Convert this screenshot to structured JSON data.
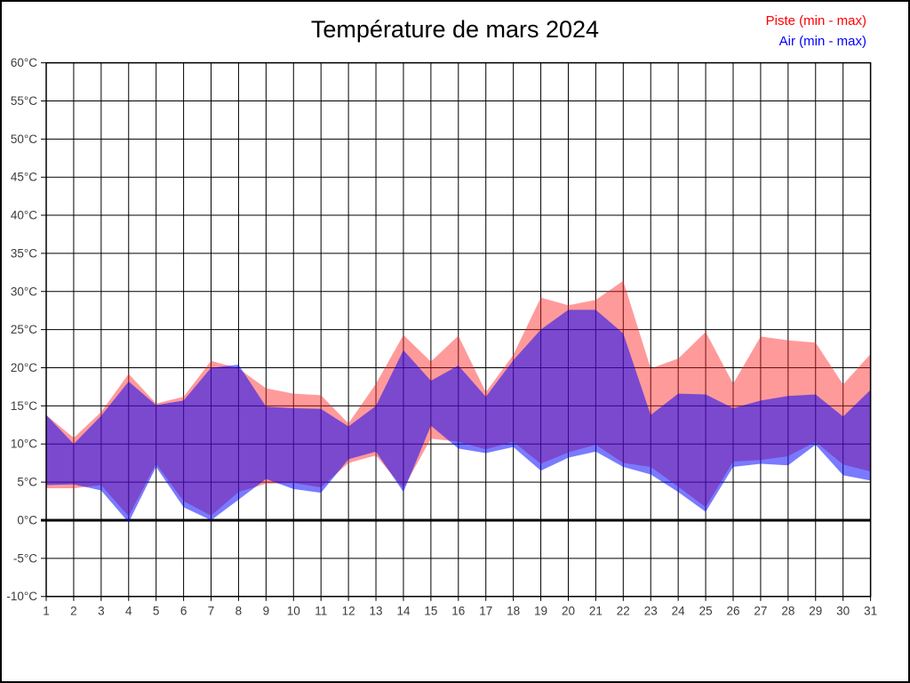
{
  "chart": {
    "title": "Température de mars 2024",
    "legend": [
      {
        "label": "Piste (min - max)",
        "color": "#ff0000"
      },
      {
        "label": "Air (min - max)",
        "color": "#0000ff"
      }
    ]
  },
  "chart_data": {
    "type": "area",
    "title": "Température de mars 2024",
    "subtitle": "",
    "xlabel": "",
    "ylabel": "",
    "x": [
      1,
      2,
      3,
      4,
      5,
      6,
      7,
      8,
      9,
      10,
      11,
      12,
      13,
      14,
      15,
      16,
      17,
      18,
      19,
      20,
      21,
      22,
      23,
      24,
      25,
      26,
      27,
      28,
      29,
      30,
      31
    ],
    "x_tick_labels": [
      "1",
      "2",
      "3",
      "4",
      "5",
      "6",
      "7",
      "8",
      "9",
      "10",
      "11",
      "12",
      "13",
      "14",
      "15",
      "16",
      "17",
      "18",
      "19",
      "20",
      "21",
      "22",
      "23",
      "24",
      "25",
      "26",
      "27",
      "28",
      "29",
      "30",
      "31"
    ],
    "y_tick_labels": [
      "60°C",
      "55°C",
      "50°C",
      "45°C",
      "40°C",
      "35°C",
      "30°C",
      "25°C",
      "20°C",
      "15°C",
      "10°C",
      "5°C",
      "0°C",
      "-5°C",
      "-10°C"
    ],
    "ylim": [
      -10,
      60
    ],
    "y_tick_step": 5,
    "grid": true,
    "zero_line_bold": true,
    "legend_position": "top-right",
    "series": [
      {
        "name": "Piste (min - max)",
        "role": "piste",
        "legend_color": "#ff0000",
        "fill": "rgba(255,30,30,0.45)",
        "min": [
          4.2,
          4.2,
          4.6,
          0.5,
          7.4,
          2.5,
          0.6,
          3.7,
          4.8,
          4.9,
          4.3,
          7.5,
          8.5,
          4.2,
          10.7,
          10.3,
          9.3,
          10.3,
          7.4,
          8.9,
          9.9,
          7.5,
          7.0,
          4.4,
          1.7,
          7.7,
          7.9,
          8.4,
          10.3,
          7.3,
          6.4
        ],
        "max": [
          13.8,
          10.8,
          14.2,
          19.2,
          15.3,
          16.2,
          20.9,
          19.9,
          17.3,
          16.6,
          16.4,
          12.7,
          17.9,
          24.3,
          20.8,
          24.2,
          16.8,
          21.7,
          29.2,
          28.2,
          28.9,
          31.4,
          19.9,
          21.2,
          24.7,
          17.9,
          24.1,
          23.6,
          23.3,
          17.8,
          21.8
        ]
      },
      {
        "name": "Air (min - max)",
        "role": "air",
        "legend_color": "#0000ff",
        "fill": "rgba(0,0,255,0.52)",
        "min": [
          4.6,
          4.7,
          3.9,
          -0.3,
          7.0,
          1.7,
          0.0,
          2.7,
          5.4,
          4.1,
          3.6,
          8.0,
          9.0,
          3.7,
          12.4,
          9.4,
          8.8,
          9.6,
          6.5,
          8.2,
          9.0,
          7.0,
          6.0,
          3.7,
          1.1,
          7.0,
          7.4,
          7.2,
          9.9,
          5.9,
          5.2
        ],
        "max": [
          13.8,
          10.0,
          13.7,
          18.2,
          15.1,
          15.7,
          20.0,
          20.4,
          14.9,
          14.7,
          14.6,
          12.3,
          15.0,
          22.3,
          18.3,
          20.3,
          16.2,
          21.0,
          25.0,
          27.6,
          27.6,
          24.5,
          13.8,
          16.6,
          16.5,
          14.7,
          15.7,
          16.3,
          16.5,
          13.6,
          17.1
        ]
      }
    ]
  },
  "axes": {
    "grid_color": "#000000",
    "frame_color": "#000000",
    "tick_text_color": "#3c3c3c"
  }
}
